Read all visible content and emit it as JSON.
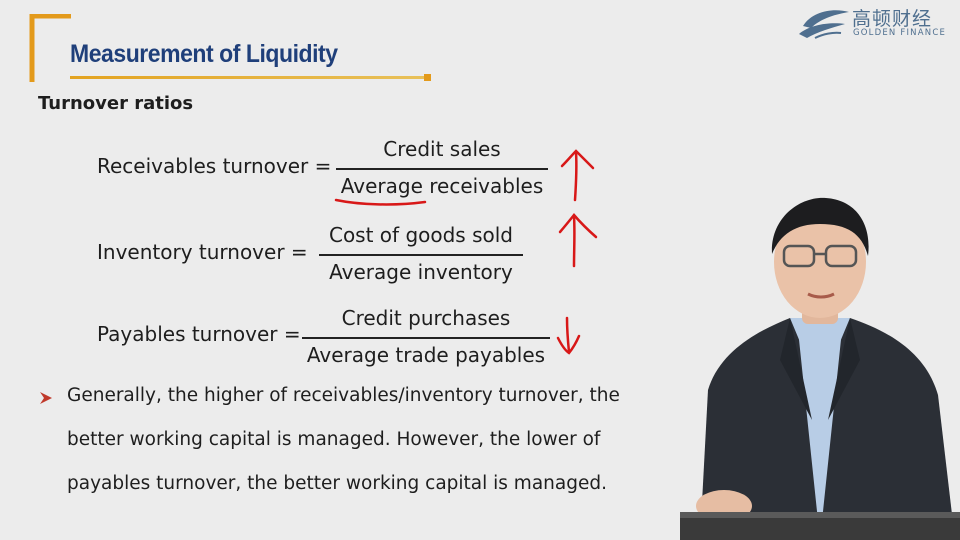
{
  "header": {
    "title": "Measurement of Liquidity",
    "logo_cn": "高顿财经",
    "logo_en": "GOLDEN FINANCE"
  },
  "slide": {
    "subtitle": "Turnover ratios",
    "formulas": [
      {
        "label": "Receivables turnover =",
        "numerator": "Credit sales",
        "denominator": "Average receivables",
        "trend": "up"
      },
      {
        "label": "Inventory turnover =",
        "numerator": "Cost of goods sold",
        "denominator": "Average inventory",
        "trend": "up"
      },
      {
        "label": "Payables turnover =",
        "numerator": "Credit purchases",
        "denominator": "Average trade payables",
        "trend": "down"
      }
    ],
    "bullet_lines": [
      "Generally, the higher of receivables/inventory turnover, the",
      "better working capital is managed. However, the lower of",
      "payables turnover, the better working capital is managed."
    ]
  },
  "colors": {
    "title": "#1f3f7a",
    "accent": "#e39a1b",
    "annotation": "#d81818",
    "bullet": "#c0392b"
  }
}
